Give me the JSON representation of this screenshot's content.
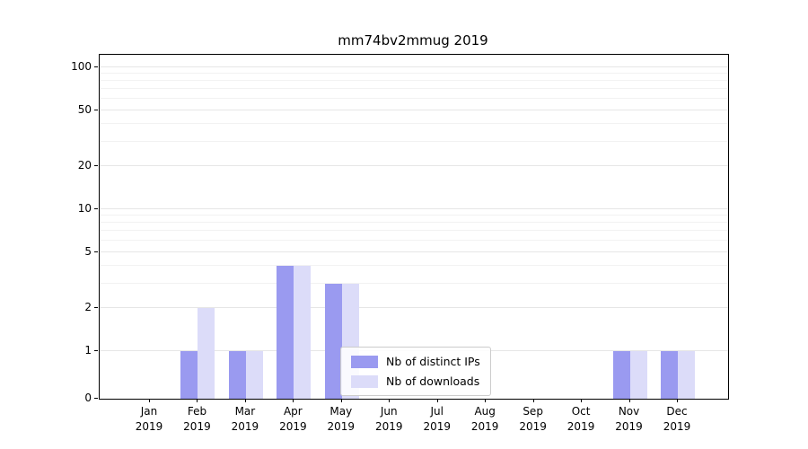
{
  "chart_data": {
    "type": "bar",
    "title": "mm74bv2mmug 2019",
    "categories": [
      "Jan",
      "Feb",
      "Mar",
      "Apr",
      "May",
      "Jun",
      "Jul",
      "Aug",
      "Sep",
      "Oct",
      "Nov",
      "Dec"
    ],
    "year": "2019",
    "series": [
      {
        "name": "Nb of distinct IPs",
        "color": "#9a9af0",
        "values": [
          0,
          1,
          1,
          4,
          3,
          0,
          0,
          0,
          0,
          0,
          1,
          1
        ]
      },
      {
        "name": "Nb of downloads",
        "color": "#dcdcf9",
        "values": [
          0,
          2,
          1,
          4,
          3,
          0,
          0,
          0,
          0,
          0,
          1,
          1
        ]
      }
    ],
    "yscale": "symlog",
    "yticks": [
      0,
      1,
      2,
      5,
      10,
      20,
      50,
      100
    ],
    "yticks_minor": [
      3,
      4,
      6,
      7,
      8,
      9,
      30,
      40,
      60,
      70,
      80,
      90
    ],
    "ylim": [
      0,
      100
    ],
    "grid": {
      "axis": "y",
      "major_color": "#e6e6e6",
      "minor_color": "#f2f2f2"
    },
    "legend": {
      "position": "lower-center",
      "border_color": "#cccccc",
      "background": "#ffffff"
    }
  }
}
